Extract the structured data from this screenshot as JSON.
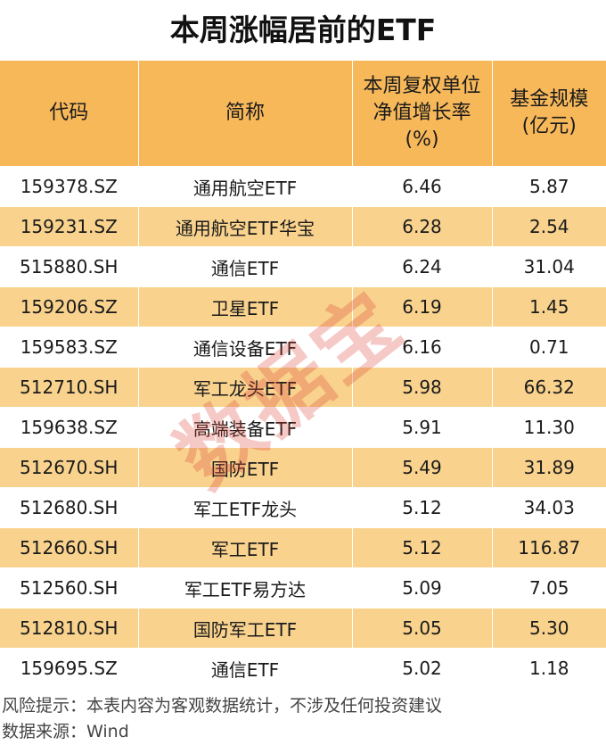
{
  "title": "本周涨幅居前的ETF",
  "table": {
    "headers": {
      "code": "代码",
      "name": "简称",
      "nav_line1": "本周复权单位",
      "nav_line2": "净值增长率",
      "nav_line3": "(%)",
      "scale_line1": "基金规模",
      "scale_line2": "(亿元)"
    },
    "rows": [
      {
        "code": "159378.SZ",
        "name": "通用航空ETF",
        "growth": "6.46",
        "scale": "5.87"
      },
      {
        "code": "159231.SZ",
        "name": "通用航空ETF华宝",
        "growth": "6.28",
        "scale": "2.54"
      },
      {
        "code": "515880.SH",
        "name": "通信ETF",
        "growth": "6.24",
        "scale": "31.04"
      },
      {
        "code": "159206.SZ",
        "name": "卫星ETF",
        "growth": "6.19",
        "scale": "1.45"
      },
      {
        "code": "159583.SZ",
        "name": "通信设备ETF",
        "growth": "6.16",
        "scale": "0.71"
      },
      {
        "code": "512710.SH",
        "name": "军工龙头ETF",
        "growth": "5.98",
        "scale": "66.32"
      },
      {
        "code": "159638.SZ",
        "name": "高端装备ETF",
        "growth": "5.91",
        "scale": "11.30"
      },
      {
        "code": "512670.SH",
        "name": "国防ETF",
        "growth": "5.49",
        "scale": "31.89"
      },
      {
        "code": "512680.SH",
        "name": "军工ETF龙头",
        "growth": "5.12",
        "scale": "34.03"
      },
      {
        "code": "512660.SH",
        "name": "军工ETF",
        "growth": "5.12",
        "scale": "116.87"
      },
      {
        "code": "512560.SH",
        "name": "军工ETF易方达",
        "growth": "5.09",
        "scale": "7.05"
      },
      {
        "code": "512810.SH",
        "name": "国防军工ETF",
        "growth": "5.05",
        "scale": "5.30"
      },
      {
        "code": "159695.SZ",
        "name": "通信ETF",
        "growth": "5.02",
        "scale": "1.18"
      }
    ]
  },
  "footer": {
    "risk": "风险提示：本表内容为客观数据统计，不涉及任何投资建议",
    "source": "数据来源：Wind"
  },
  "watermark": "数据宝",
  "colors": {
    "header_bg": "#f7b85a",
    "stripe_bg": "#f9d38e",
    "watermark": "#dc3c32"
  }
}
